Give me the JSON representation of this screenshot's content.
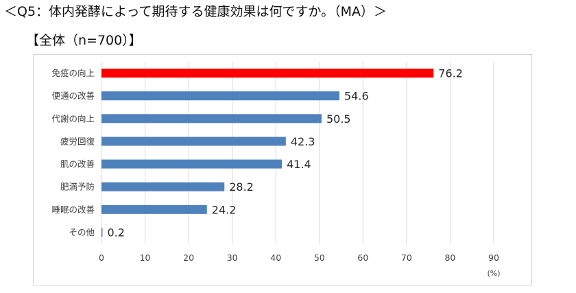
{
  "title": "＜Q5：体内発酵によって期待する健康効果は何ですか。（MA）＞",
  "subtitle": "【全体（n=700）】",
  "chart_data": {
    "type": "bar",
    "orientation": "horizontal",
    "categories": [
      "免疫の向上",
      "便通の改善",
      "代謝の向上",
      "疲労回復",
      "肌の改善",
      "肥満予防",
      "睡眠の改善",
      "その他"
    ],
    "values": [
      76.2,
      54.6,
      50.5,
      42.3,
      41.4,
      28.2,
      24.2,
      0.2
    ],
    "value_labels": [
      "76.2",
      "54.6",
      "50.5",
      "42.3",
      "41.4",
      "28.2",
      "24.2",
      "0.2"
    ],
    "bar_colors": [
      "#ff0000",
      "#4f81bd",
      "#4f81bd",
      "#4f81bd",
      "#4f81bd",
      "#4f81bd",
      "#4f81bd",
      "#4f81bd"
    ],
    "xlim": [
      0,
      90
    ],
    "xticks": [
      0,
      10,
      20,
      30,
      40,
      50,
      60,
      70,
      80,
      90
    ],
    "x_unit": "(%)",
    "grid": "vertical",
    "grid_color": "#d9d9d9"
  }
}
